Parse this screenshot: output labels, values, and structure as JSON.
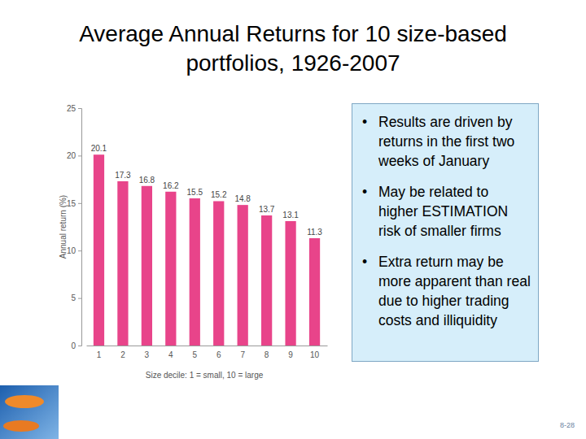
{
  "chart_data": {
    "type": "bar",
    "title": "Average Annual Returns for 10 size-based portfolios, 1926-2007",
    "categories": [
      "1",
      "2",
      "3",
      "4",
      "5",
      "6",
      "7",
      "8",
      "9",
      "10"
    ],
    "values": [
      20.1,
      17.3,
      16.8,
      16.2,
      15.5,
      15.2,
      14.8,
      13.7,
      13.1,
      11.3
    ],
    "color": "#e8448a",
    "x_label": "Size decile: 1 = small, 10 = large",
    "y_label": "Annual return (%)",
    "ylim": [
      0,
      25
    ],
    "yticks": [
      0,
      5,
      10,
      15,
      20,
      25
    ],
    "grid": false,
    "data_labels": true
  },
  "notes": {
    "bullets": [
      "Results are driven by returns in the first two weeks of January",
      "May be related to higher ESTIMATION risk of smaller firms",
      "Extra return may be more apparent than real due to higher trading costs and illiquidity"
    ]
  },
  "page_number": "8-28"
}
